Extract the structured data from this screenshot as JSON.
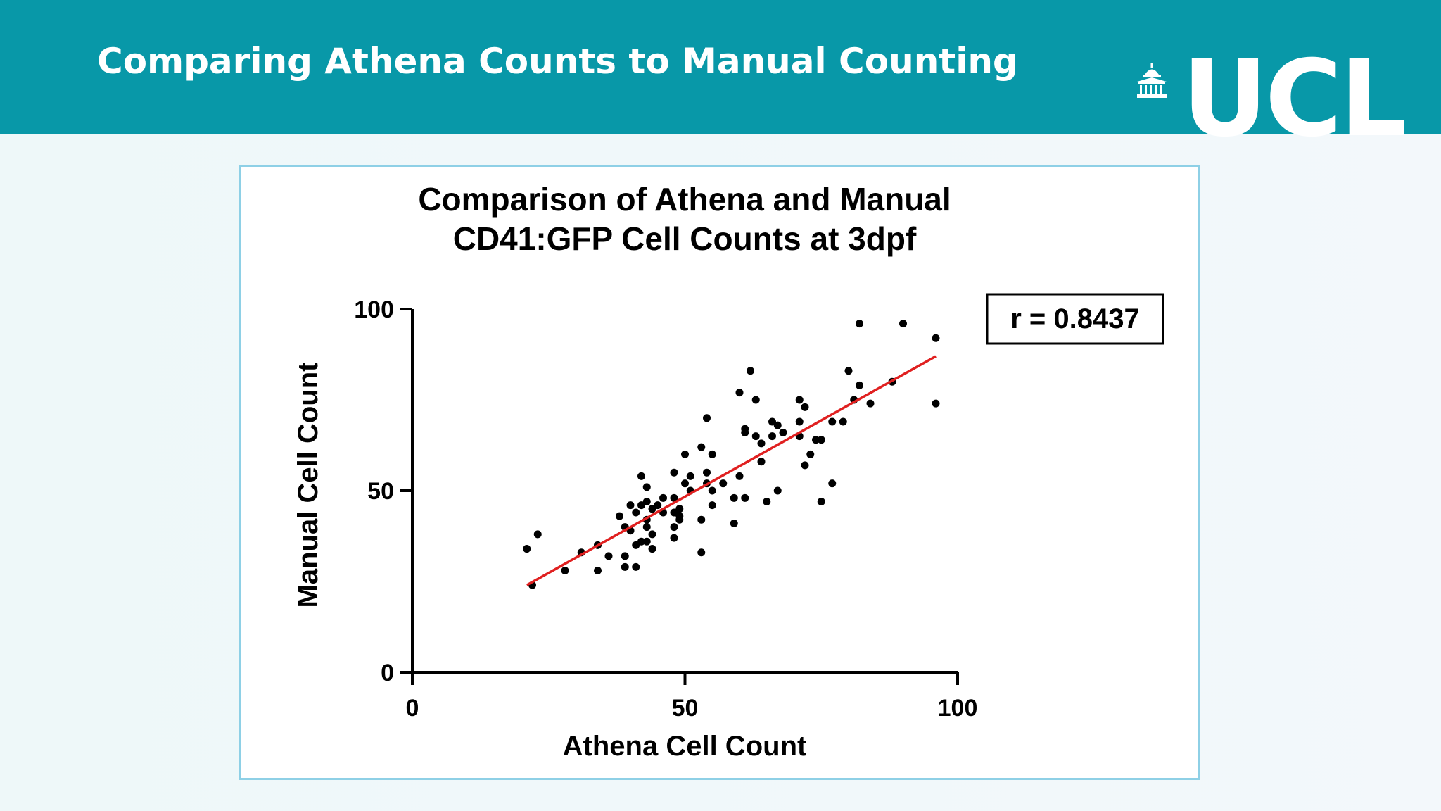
{
  "slide": {
    "title": "Comparing Athena Counts to Manual Counting",
    "logo_text": "UCL",
    "header_color": "#0898a8"
  },
  "chart_data": {
    "type": "scatter",
    "title_lines": [
      "Comparison of Athena and Manual",
      "CD41:GFP Cell Counts at 3dpf"
    ],
    "xlabel": "Athena Cell Count",
    "ylabel": "Manual Cell Count",
    "xlim": [
      0,
      100
    ],
    "ylim": [
      0,
      100
    ],
    "xticks": [
      0,
      50,
      100
    ],
    "yticks": [
      0,
      50,
      100
    ],
    "grid": false,
    "annotation": "r = 0.8437",
    "point_color": "#000000",
    "fit_line": {
      "color": "#e02020",
      "x": [
        21,
        96
      ],
      "y": [
        24,
        87
      ]
    },
    "points": [
      {
        "x": 21,
        "y": 34
      },
      {
        "x": 22,
        "y": 24
      },
      {
        "x": 23,
        "y": 38
      },
      {
        "x": 28,
        "y": 28
      },
      {
        "x": 31,
        "y": 33
      },
      {
        "x": 34,
        "y": 35
      },
      {
        "x": 34,
        "y": 28
      },
      {
        "x": 36,
        "y": 32
      },
      {
        "x": 38,
        "y": 43
      },
      {
        "x": 39,
        "y": 40
      },
      {
        "x": 39,
        "y": 32
      },
      {
        "x": 39,
        "y": 29
      },
      {
        "x": 40,
        "y": 46
      },
      {
        "x": 40,
        "y": 39
      },
      {
        "x": 41,
        "y": 44
      },
      {
        "x": 41,
        "y": 35
      },
      {
        "x": 41,
        "y": 29
      },
      {
        "x": 42,
        "y": 54
      },
      {
        "x": 42,
        "y": 46
      },
      {
        "x": 42,
        "y": 36
      },
      {
        "x": 43,
        "y": 51
      },
      {
        "x": 43,
        "y": 47
      },
      {
        "x": 43,
        "y": 42
      },
      {
        "x": 43,
        "y": 40
      },
      {
        "x": 43,
        "y": 36
      },
      {
        "x": 44,
        "y": 45
      },
      {
        "x": 44,
        "y": 38
      },
      {
        "x": 44,
        "y": 34
      },
      {
        "x": 45,
        "y": 46
      },
      {
        "x": 46,
        "y": 48
      },
      {
        "x": 46,
        "y": 44
      },
      {
        "x": 48,
        "y": 55
      },
      {
        "x": 48,
        "y": 48
      },
      {
        "x": 48,
        "y": 44
      },
      {
        "x": 48,
        "y": 40
      },
      {
        "x": 48,
        "y": 37
      },
      {
        "x": 49,
        "y": 45
      },
      {
        "x": 49,
        "y": 43
      },
      {
        "x": 49,
        "y": 42
      },
      {
        "x": 50,
        "y": 60
      },
      {
        "x": 50,
        "y": 52
      },
      {
        "x": 51,
        "y": 54
      },
      {
        "x": 51,
        "y": 50
      },
      {
        "x": 53,
        "y": 62
      },
      {
        "x": 53,
        "y": 42
      },
      {
        "x": 53,
        "y": 33
      },
      {
        "x": 54,
        "y": 70
      },
      {
        "x": 54,
        "y": 55
      },
      {
        "x": 54,
        "y": 52
      },
      {
        "x": 55,
        "y": 60
      },
      {
        "x": 55,
        "y": 50
      },
      {
        "x": 55,
        "y": 46
      },
      {
        "x": 57,
        "y": 52
      },
      {
        "x": 59,
        "y": 48
      },
      {
        "x": 59,
        "y": 41
      },
      {
        "x": 60,
        "y": 77
      },
      {
        "x": 60,
        "y": 54
      },
      {
        "x": 61,
        "y": 67
      },
      {
        "x": 61,
        "y": 66
      },
      {
        "x": 61,
        "y": 48
      },
      {
        "x": 62,
        "y": 83
      },
      {
        "x": 63,
        "y": 75
      },
      {
        "x": 63,
        "y": 65
      },
      {
        "x": 64,
        "y": 63
      },
      {
        "x": 64,
        "y": 58
      },
      {
        "x": 65,
        "y": 47
      },
      {
        "x": 66,
        "y": 69
      },
      {
        "x": 66,
        "y": 65
      },
      {
        "x": 67,
        "y": 68
      },
      {
        "x": 67,
        "y": 50
      },
      {
        "x": 68,
        "y": 66
      },
      {
        "x": 71,
        "y": 75
      },
      {
        "x": 71,
        "y": 69
      },
      {
        "x": 71,
        "y": 65
      },
      {
        "x": 72,
        "y": 73
      },
      {
        "x": 72,
        "y": 57
      },
      {
        "x": 73,
        "y": 60
      },
      {
        "x": 74,
        "y": 64
      },
      {
        "x": 75,
        "y": 64
      },
      {
        "x": 75,
        "y": 47
      },
      {
        "x": 77,
        "y": 69
      },
      {
        "x": 77,
        "y": 52
      },
      {
        "x": 79,
        "y": 69
      },
      {
        "x": 80,
        "y": 83
      },
      {
        "x": 81,
        "y": 75
      },
      {
        "x": 82,
        "y": 96
      },
      {
        "x": 82,
        "y": 79
      },
      {
        "x": 84,
        "y": 74
      },
      {
        "x": 88,
        "y": 80
      },
      {
        "x": 90,
        "y": 96
      },
      {
        "x": 96,
        "y": 92
      },
      {
        "x": 96,
        "y": 74
      }
    ]
  }
}
